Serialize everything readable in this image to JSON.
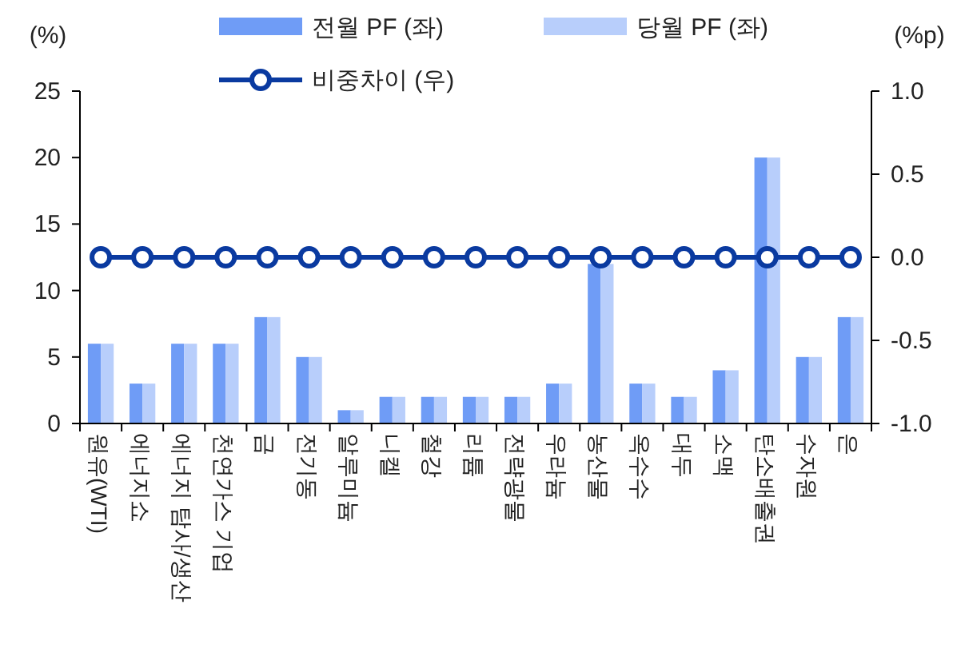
{
  "chart_data": {
    "type": "bar",
    "ylabel": "(%)",
    "y2label": "(%p)",
    "categories": [
      "원유(WTI)",
      "에너지쇼",
      "에너지 탐사/생산",
      "천연가스 기업",
      "금",
      "전기동",
      "알루미늄",
      "니켈",
      "철강",
      "리튬",
      "전략광물",
      "우라늄",
      "농산물",
      "옥수수",
      "대두",
      "소맥",
      "탄소배출권",
      "수자원",
      "은"
    ],
    "series": [
      {
        "name": "전월 PF (좌)",
        "color": "#6f9cf6",
        "values": [
          6,
          3,
          6,
          6,
          8,
          5,
          1,
          2,
          2,
          2,
          2,
          3,
          12,
          3,
          2,
          4,
          20,
          5,
          8
        ]
      },
      {
        "name": "당월 PF (좌)",
        "color": "#b8cefb",
        "values": [
          6,
          3,
          6,
          6,
          8,
          5,
          1,
          2,
          2,
          2,
          2,
          3,
          12,
          3,
          2,
          4,
          20,
          5,
          8
        ]
      },
      {
        "name": "비중차이 (우)",
        "type": "line",
        "axis": "y2",
        "color": "#0a3aa0",
        "marker": "circle",
        "line_style": "solid",
        "values": [
          0,
          0,
          0,
          0,
          0,
          0,
          0,
          0,
          0,
          0,
          0,
          0,
          0,
          0,
          0,
          0,
          0,
          0,
          0
        ]
      }
    ],
    "ylim": [
      0,
      25
    ],
    "yticks": [
      0,
      5,
      10,
      15,
      20,
      25
    ],
    "y2lim": [
      -1,
      1
    ],
    "y2ticks": [
      {
        "value": -1,
        "label": "-1.0"
      },
      {
        "value": -0.5,
        "label": "-0.5"
      },
      {
        "value": 0,
        "label": "0.0"
      },
      {
        "value": 0.5,
        "label": "0.5"
      },
      {
        "value": 1,
        "label": "1.0"
      }
    ],
    "legend": "top",
    "grid": false
  }
}
